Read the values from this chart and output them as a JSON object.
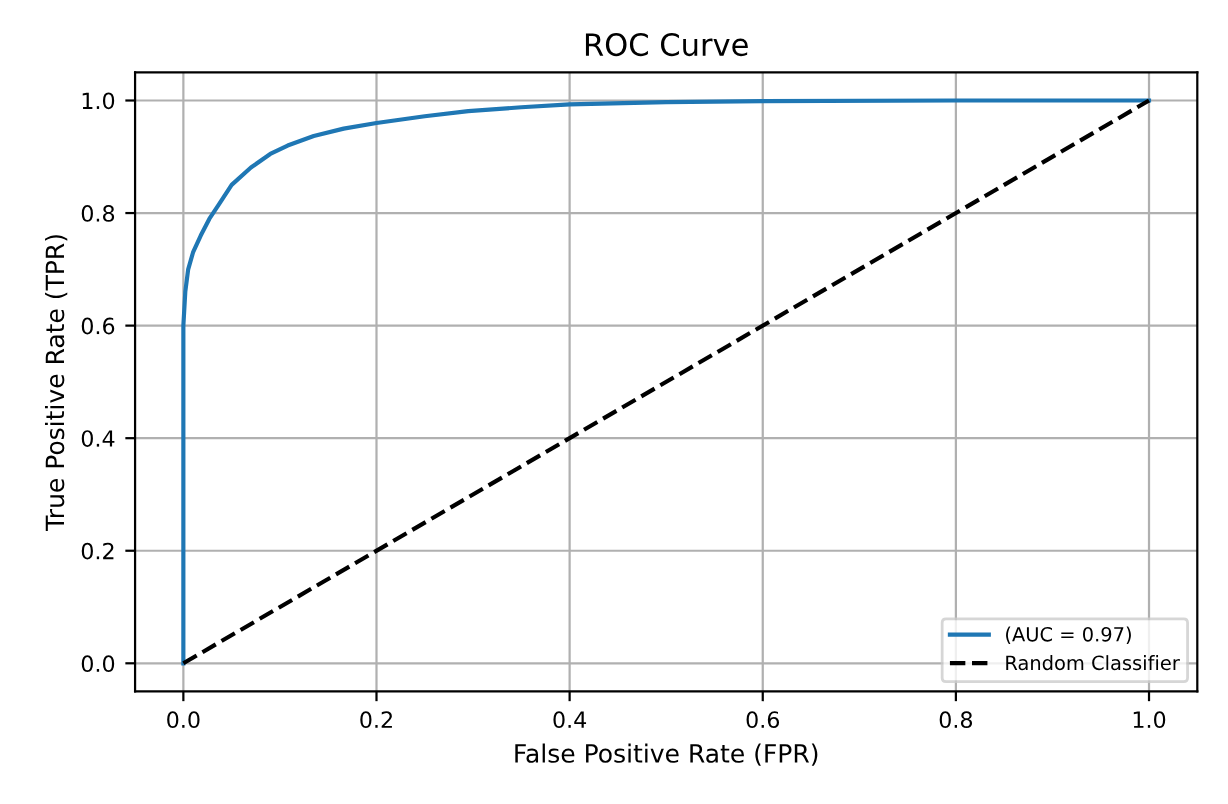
{
  "chart_data": {
    "type": "line",
    "title": "ROC Curve",
    "xlabel": "False Positive Rate (FPR)",
    "ylabel": "True Positive Rate (TPR)",
    "series": [
      {
        "name": "(AUC = 0.97)",
        "color": "#1f77b4",
        "line_style": "solid",
        "x": [
          0,
          0,
          0.002,
          0.005,
          0.01,
          0.018,
          0.027,
          0.037,
          0.05,
          0.07,
          0.09,
          0.108,
          0.135,
          0.166,
          0.2,
          0.25,
          0.295,
          0.35,
          0.4,
          0.5,
          0.6,
          0.8,
          1.0
        ],
        "values": [
          0,
          0.6,
          0.66,
          0.7,
          0.73,
          0.76,
          0.79,
          0.816,
          0.85,
          0.881,
          0.905,
          0.92,
          0.937,
          0.95,
          0.96,
          0.972,
          0.981,
          0.988,
          0.993,
          0.997,
          0.999,
          1.0,
          1.0
        ]
      },
      {
        "name": "Random Classifier",
        "color": "#000000",
        "line_style": "dashed",
        "x": [
          0,
          1
        ],
        "values": [
          0,
          1
        ]
      }
    ],
    "xlim": [
      -0.05,
      1.05
    ],
    "ylim": [
      -0.05,
      1.05
    ],
    "xticks": [
      {
        "value": 0,
        "label": "0.0"
      },
      0.2,
      0.4,
      0.6,
      0.8,
      {
        "value": 1,
        "label": "1.0"
      }
    ],
    "yticks": [
      {
        "value": 0,
        "label": "0.0"
      },
      0.2,
      0.4,
      0.6,
      0.8,
      {
        "value": 1,
        "label": "1.0"
      }
    ],
    "grid": true,
    "legend": "bottom right"
  }
}
